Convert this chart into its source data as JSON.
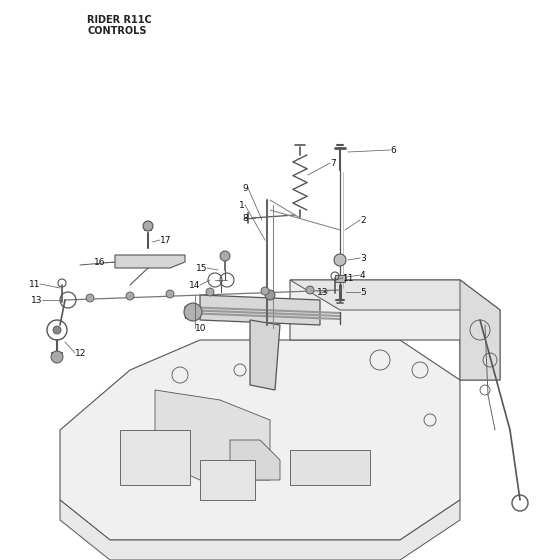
{
  "bg_color": "#ffffff",
  "line_color": "#555555",
  "line_color_dark": "#333333",
  "line_color_light": "#888888",
  "title_line1": "RIDER R11C",
  "title_line2": "CONTROLS",
  "lw_main": 0.8,
  "lw_thick": 1.2,
  "lw_thin": 0.5
}
